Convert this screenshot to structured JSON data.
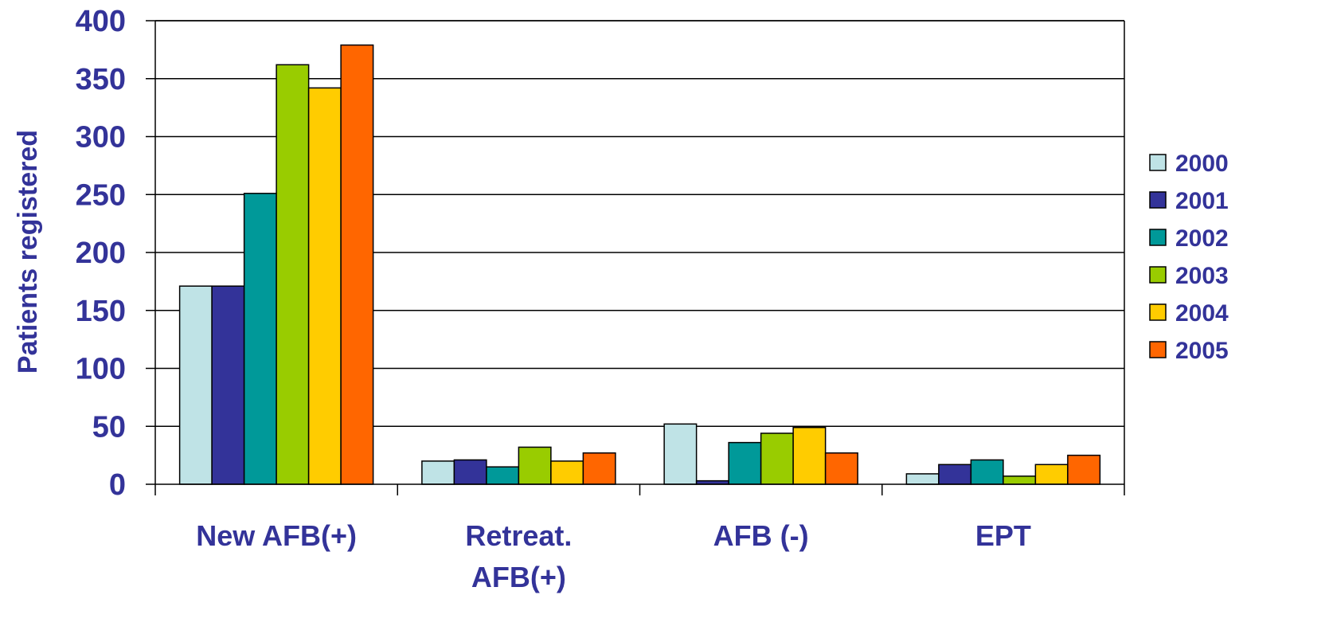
{
  "chart_data": {
    "type": "bar",
    "title": "",
    "xlabel": "",
    "ylabel": "Patients registered",
    "ylim": [
      0,
      400
    ],
    "yticks": [
      "0",
      "50",
      "100",
      "150",
      "200",
      "250",
      "300",
      "350",
      "400"
    ],
    "grid": true,
    "legend": "right",
    "categories": [
      [
        "New AFB(+)"
      ],
      [
        "Retreat.",
        "AFB(+)"
      ],
      [
        "AFB (-)"
      ],
      [
        "EPT"
      ]
    ],
    "series": [
      {
        "name": "2000",
        "color": "#bfe3e6",
        "values": [
          171,
          20,
          52,
          9
        ]
      },
      {
        "name": "2001",
        "color": "#333399",
        "values": [
          171,
          21,
          3,
          17
        ]
      },
      {
        "name": "2002",
        "color": "#009999",
        "values": [
          251,
          15,
          36,
          21
        ]
      },
      {
        "name": "2003",
        "color": "#99cc00",
        "values": [
          362,
          32,
          44,
          7
        ]
      },
      {
        "name": "2004",
        "color": "#ffcc00",
        "values": [
          342,
          20,
          49,
          17
        ]
      },
      {
        "name": "2005",
        "color": "#ff6600",
        "values": [
          379,
          27,
          27,
          25
        ]
      }
    ]
  }
}
